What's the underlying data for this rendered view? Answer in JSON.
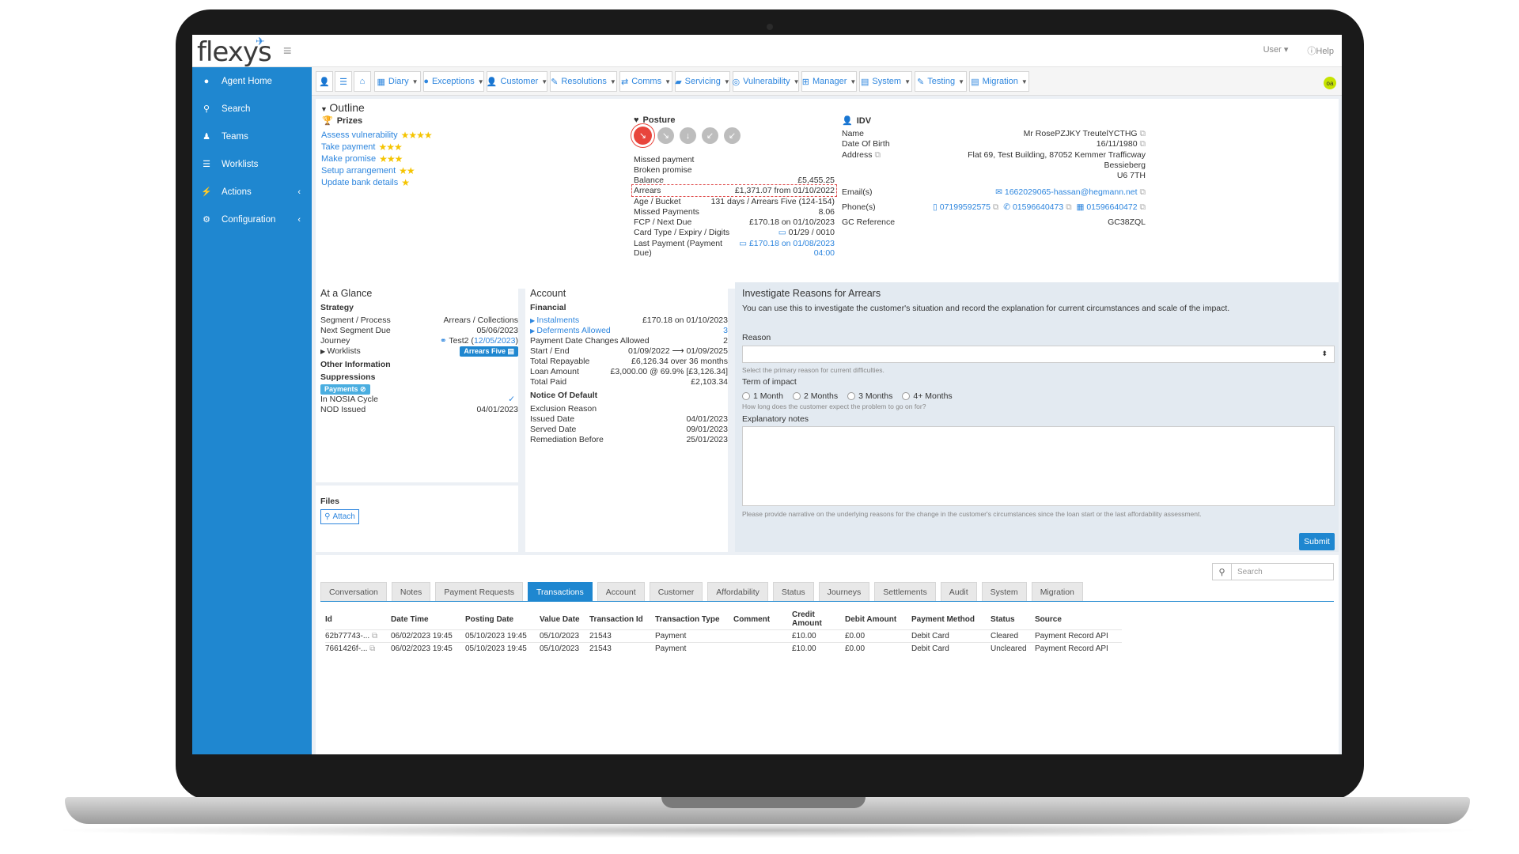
{
  "header": {
    "logo": "flexys",
    "user": "User ▾",
    "help": "Help"
  },
  "sidebar": {
    "items": [
      {
        "label": "Agent Home",
        "icon": "user-icon"
      },
      {
        "label": "Search",
        "icon": "search-icon"
      },
      {
        "label": "Teams",
        "icon": "users-icon"
      },
      {
        "label": "Worklists",
        "icon": "list-icon"
      },
      {
        "label": "Actions",
        "icon": "bolt-icon"
      },
      {
        "label": "Configuration",
        "icon": "gear-icon"
      }
    ]
  },
  "toolbar": {
    "menus": [
      "Diary",
      "Exceptions",
      "Customer",
      "Resolutions",
      "Comms",
      "Servicing",
      "Vulnerability",
      "Manager",
      "System",
      "Testing",
      "Migration"
    ],
    "avatar": "oa"
  },
  "outline": {
    "title": "Outline",
    "prizes_title": "Prizes",
    "prizes": [
      {
        "label": "Assess vulnerability",
        "stars": "★★★★"
      },
      {
        "label": "Take payment",
        "stars": "★★★"
      },
      {
        "label": "Make promise",
        "stars": "★★★"
      },
      {
        "label": "Setup arrangement",
        "stars": "★★"
      },
      {
        "label": "Update bank details",
        "stars": "★"
      }
    ],
    "posture_title": "Posture",
    "posture_links": [
      "Missed payment",
      "Broken promise"
    ],
    "posture_rows": [
      {
        "k": "Balance",
        "v": "£5,455.25"
      },
      {
        "k": "Arrears",
        "v": "£1,371.07 from 01/10/2022"
      },
      {
        "k": "Age / Bucket",
        "v": "131 days / Arrears Five (124-154)"
      },
      {
        "k": "Missed Payments",
        "v": "8.06"
      },
      {
        "k": "FCP / Next Due",
        "v": "£170.18 on 01/10/2023"
      },
      {
        "k": "Card Type / Expiry / Digits",
        "v": "01/29 / 0010"
      },
      {
        "k": "Last Payment (Payment Due)",
        "v": "£170.18 on 01/08/2023 04:00"
      }
    ],
    "idv_title": "IDV",
    "idv": {
      "name_k": "Name",
      "name_v": "Mr RosePZJKY TreutelYCTHG",
      "dob_k": "Date Of Birth",
      "dob_v": "16/11/1980",
      "address_k": "Address",
      "address_1": "Flat 69, Test Building, 87052 Kemmer Trafficway",
      "address_2": "Bessieberg",
      "address_3": "U6 7TH",
      "email_k": "Email(s)",
      "email_v": "1662029065-hassan@hegmann.net",
      "phone_k": "Phone(s)",
      "phone_1": "07199592575",
      "phone_2": "01596640473",
      "phone_3": "01596640472",
      "gc_k": "GC Reference",
      "gc_v": "GC38ZQL"
    }
  },
  "glance": {
    "title": "At a Glance",
    "strategy": "Strategy",
    "segment_k": "Segment / Process",
    "segment_v": "Arrears / Collections",
    "next_k": "Next Segment Due",
    "next_v": "05/06/2023",
    "journey_k": "Journey",
    "journey_v": "Test2 (",
    "journey_date": "12/05/2023",
    "journey_end": ")",
    "worklists_k": "Worklists",
    "worklists_badge": "Arrears Five",
    "other": "Other Information",
    "suppressions": "Suppressions",
    "payments_badge": "Payments",
    "nosia_k": "In NOSIA Cycle",
    "nosia_v": "✓",
    "nod_k": "NOD Issued",
    "nod_v": "04/01/2023"
  },
  "files": {
    "title": "Files",
    "attach": "Attach"
  },
  "account": {
    "title": "Account",
    "financial": "Financial",
    "rows": [
      {
        "k": "Instalments",
        "v": "£170.18 on 01/10/2023",
        "link": true
      },
      {
        "k": "Deferments Allowed",
        "v": "3",
        "link": true
      },
      {
        "k": "Payment Date Changes Allowed",
        "v": "2",
        "link": false
      },
      {
        "k": "Start / End",
        "v": "01/09/2022 ⟶ 01/09/2025",
        "link": false
      },
      {
        "k": "Total Repayable",
        "v": "£6,126.34 over 36 months",
        "link": false
      },
      {
        "k": "Loan Amount",
        "v": "£3,000.00 @ 69.9% [£3,126.34]",
        "link": false
      },
      {
        "k": "Total Paid",
        "v": "£2,103.34",
        "link": false
      }
    ],
    "nod_title": "Notice Of Default",
    "nod_rows": [
      {
        "k": "Exclusion Reason",
        "v": ""
      },
      {
        "k": "Issued Date",
        "v": "04/01/2023"
      },
      {
        "k": "Served Date",
        "v": "09/01/2023"
      },
      {
        "k": "Remediation Before",
        "v": "25/01/2023"
      }
    ]
  },
  "investigate": {
    "title": "Investigate Reasons for Arrears",
    "intro": "You can use this to investigate the customer's situation and record the explanation for current circumstances and scale of the impact.",
    "reason_label": "Reason",
    "reason_help": "Select the primary reason for current difficulties.",
    "term_label": "Term of impact",
    "term_options": [
      "1 Month",
      "2 Months",
      "3 Months",
      "4+ Months"
    ],
    "term_help": "How long does the customer expect the problem to go on for?",
    "notes_label": "Explanatory notes",
    "notes_help": "Please provide narrative on the underlying reasons for the change in the customer's circumstances since the loan start or the last affordability assessment.",
    "submit": "Submit"
  },
  "bottom": {
    "search_placeholder": "Search",
    "tabs": [
      "Conversation",
      "Notes",
      "Payment Requests",
      "Transactions",
      "Account",
      "Customer",
      "Affordability",
      "Status",
      "Journeys",
      "Settlements",
      "Audit",
      "System",
      "Migration"
    ],
    "active_tab": "Transactions",
    "columns": [
      "Id",
      "Date Time",
      "Posting Date",
      "Value Date",
      "Transaction Id",
      "Transaction Type",
      "Comment",
      "Credit Amount",
      "Debit Amount",
      "Payment Method",
      "Status",
      "Source"
    ],
    "rows": [
      [
        "62b77743-...",
        "06/02/2023 19:45",
        "05/10/2023 19:45",
        "05/10/2023",
        "21543",
        "Payment",
        "",
        "£10.00",
        "£0.00",
        "Debit Card",
        "Cleared",
        "Payment Record API"
      ],
      [
        "7661426f-...",
        "06/02/2023 19:45",
        "05/10/2023 19:45",
        "05/10/2023",
        "21543",
        "Payment",
        "",
        "£10.00",
        "£0.00",
        "Debit Card",
        "Uncleared",
        "Payment Record API"
      ]
    ]
  }
}
